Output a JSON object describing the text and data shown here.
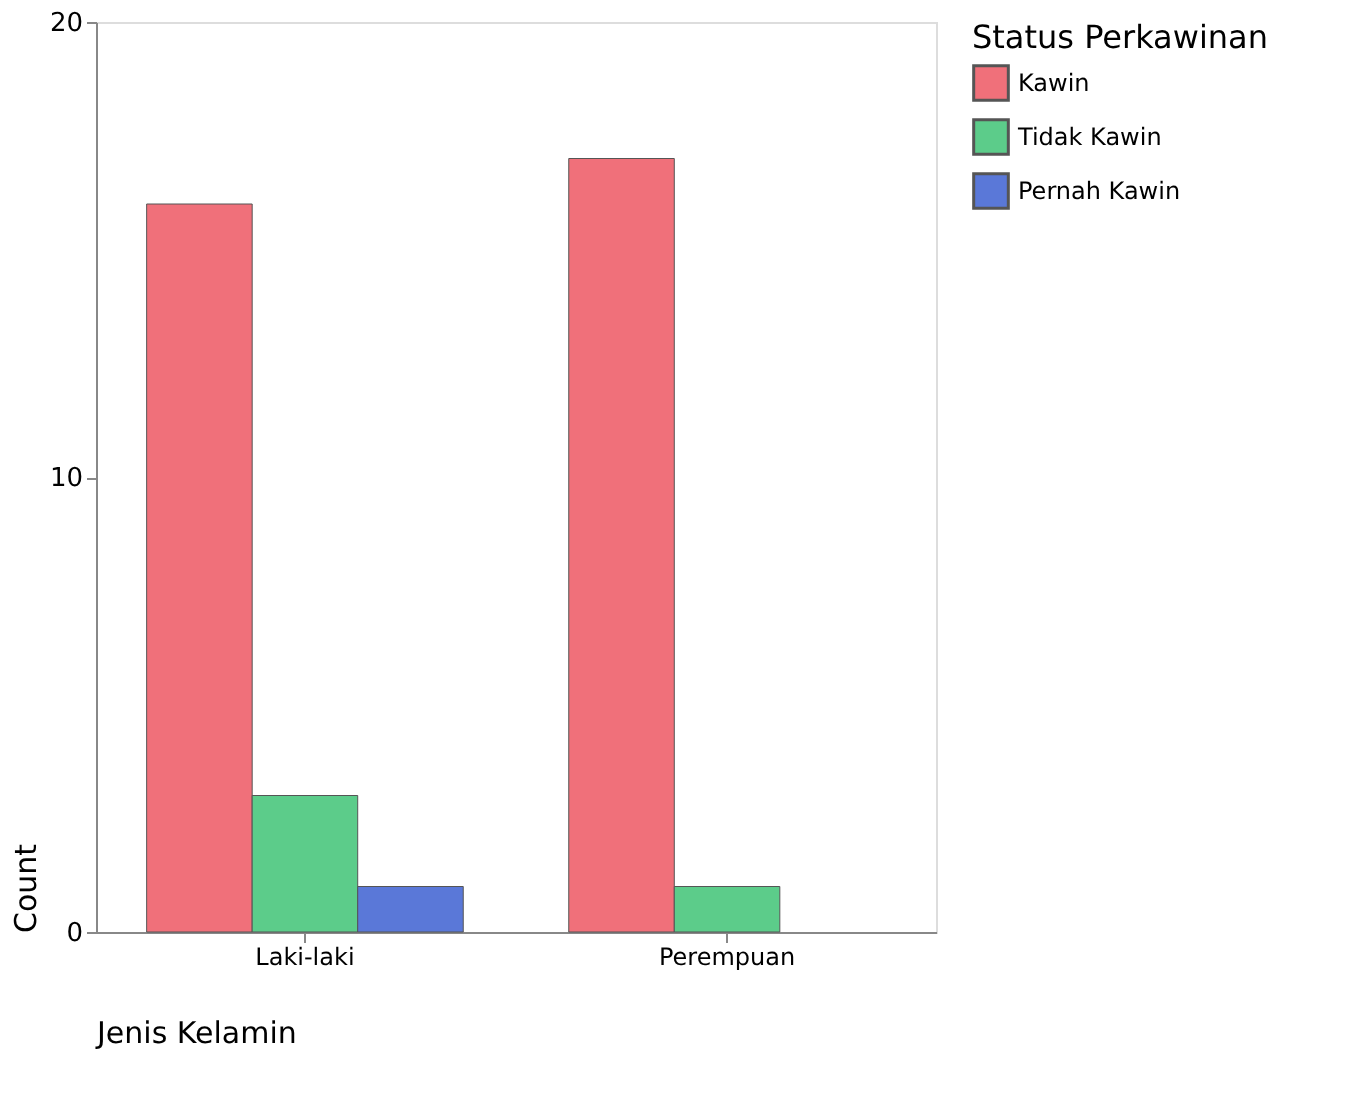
{
  "chart_data": {
    "type": "bar",
    "xlabel": "Jenis Kelamin",
    "ylabel": "Count",
    "legend_title": "Status Perkawinan",
    "categories": [
      "Laki-laki",
      "Perempuan"
    ],
    "series": [
      {
        "name": "Kawin",
        "color": "#f0707a",
        "values": [
          16,
          17
        ]
      },
      {
        "name": "Tidak Kawin",
        "color": "#5ccc8a",
        "values": [
          3,
          1
        ]
      },
      {
        "name": "Pernah Kawin",
        "color": "#5a78d8",
        "values": [
          1,
          null
        ]
      }
    ],
    "ylim": [
      0,
      20
    ],
    "yticks": [
      0,
      10,
      20
    ],
    "grid": false,
    "legend": "right"
  }
}
